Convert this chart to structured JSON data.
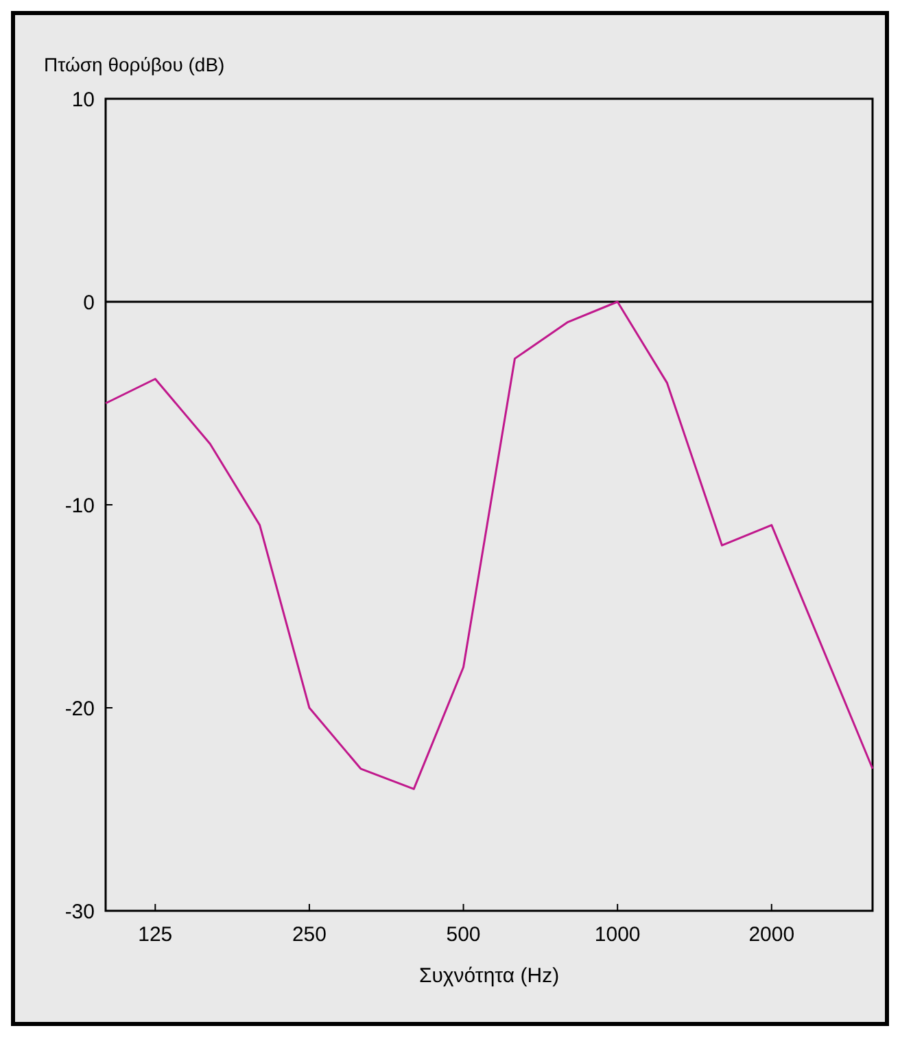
{
  "chart_data": {
    "type": "line",
    "ylabel": "Πτώση θορύβου (dB)",
    "xlabel": "Συχνότητα (Hz)",
    "x": [
      100,
      125,
      160,
      200,
      250,
      315,
      400,
      500,
      630,
      800,
      1000,
      1250,
      1600,
      2000,
      3150
    ],
    "series": [
      {
        "color": "#c0188c",
        "values": [
          -5,
          -3.8,
          -7,
          -11,
          -20,
          -23,
          -24,
          -18,
          -2.8,
          -1,
          0,
          -4,
          -12,
          -11,
          -23
        ]
      }
    ],
    "log": "x",
    "xlim": [
      100,
      3150
    ],
    "xticks": [
      125,
      250,
      500,
      1000,
      2000
    ],
    "ylim": [
      -30,
      10
    ],
    "yticks": [
      -30,
      -20,
      -10,
      0,
      10
    ],
    "ref_lines": [
      {
        "axis": "y",
        "value": 0,
        "color": "#000000"
      }
    ],
    "grid": false,
    "marker": "none",
    "line_style": "solid"
  }
}
